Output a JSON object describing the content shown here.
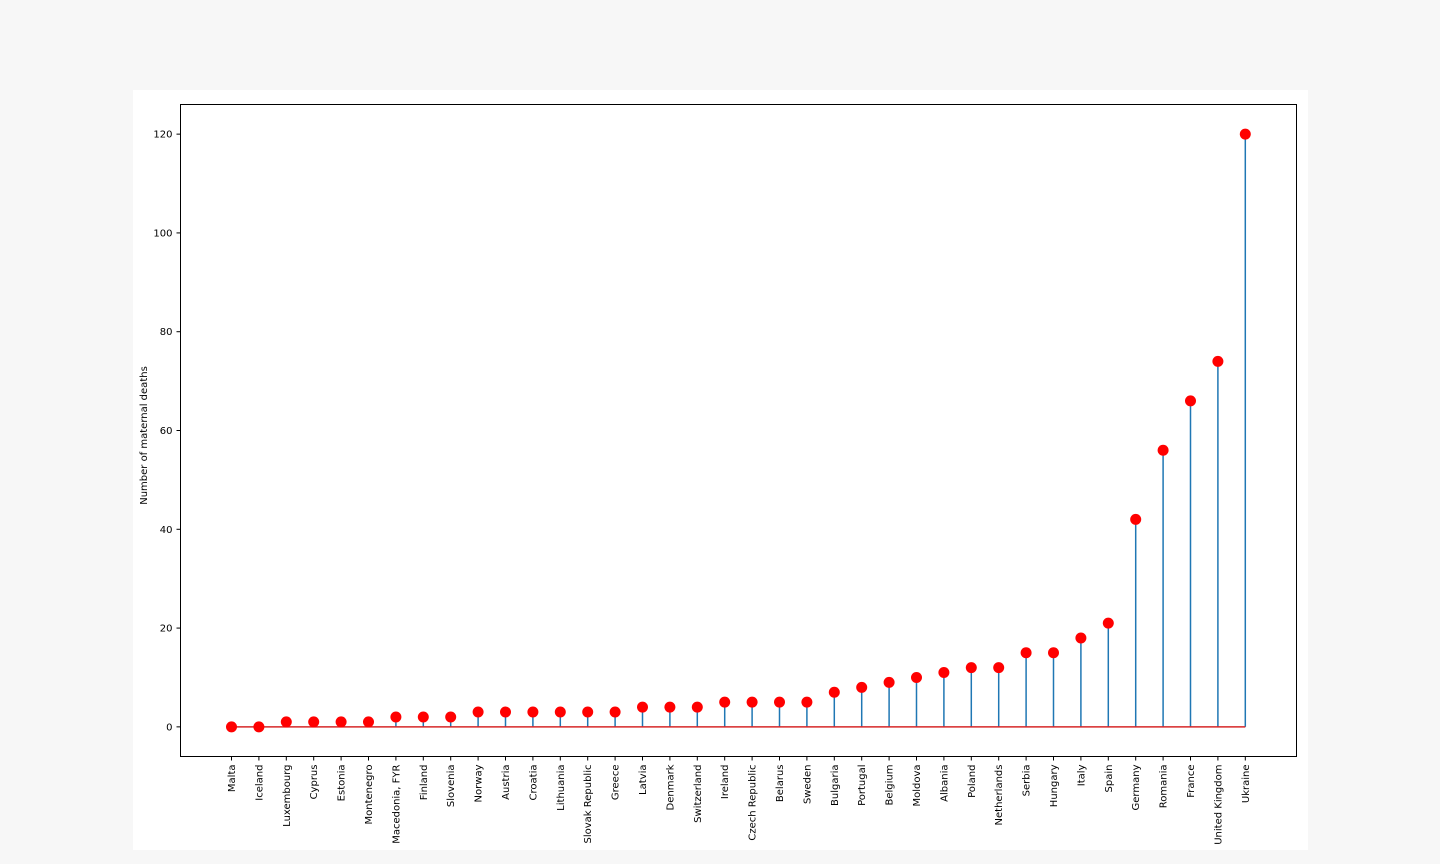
{
  "chart_data": {
    "type": "stem",
    "ylabel": "Number of maternal deaths",
    "ylim": [
      -6,
      126
    ],
    "yticks": [
      0,
      20,
      40,
      60,
      80,
      100,
      120
    ],
    "highlight_category": "Romania",
    "colors": {
      "stem": "#1f77b4",
      "marker": "#ff0000",
      "baseline": "#d62728",
      "highlight_label": "#ff0000",
      "axis": "#000000"
    },
    "grid": false,
    "categories": [
      "Malta",
      "Iceland",
      "Luxembourg",
      "Cyprus",
      "Estonia",
      "Montenegro",
      "Macedonia, FYR",
      "Finland",
      "Slovenia",
      "Norway",
      "Austria",
      "Croatia",
      "Lithuania",
      "Slovak Republic",
      "Greece",
      "Latvia",
      "Denmark",
      "Switzerland",
      "Ireland",
      "Czech Republic",
      "Belarus",
      "Sweden",
      "Bulgaria",
      "Portugal",
      "Belgium",
      "Moldova",
      "Albania",
      "Poland",
      "Netherlands",
      "Serbia",
      "Hungary",
      "Italy",
      "Spain",
      "Germany",
      "Romania",
      "France",
      "United Kingdom",
      "Ukraine"
    ],
    "values": [
      0,
      0,
      1,
      1,
      1,
      1,
      2,
      2,
      2,
      3,
      3,
      3,
      3,
      3,
      3,
      4,
      4,
      4,
      5,
      5,
      5,
      5,
      7,
      8,
      9,
      10,
      11,
      12,
      12,
      15,
      15,
      18,
      21,
      42,
      56,
      66,
      74,
      120
    ]
  }
}
